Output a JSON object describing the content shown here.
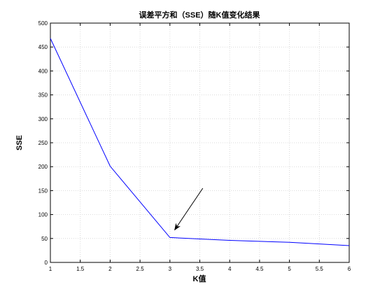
{
  "chart_data": {
    "type": "line",
    "title": "误差平方和（SSE）随K值变化结果",
    "xlabel": "K值",
    "ylabel": "SSE",
    "x": [
      1,
      2,
      3,
      4,
      5,
      6
    ],
    "series": [
      {
        "values": [
          468,
          201,
          52,
          46,
          42,
          35
        ],
        "color": "#0000ff"
      }
    ],
    "xlim": [
      1,
      6
    ],
    "ylim": [
      0,
      500
    ],
    "xticks": [
      "1",
      "1.5",
      "2",
      "2.5",
      "3",
      "3.5",
      "4",
      "4.5",
      "5",
      "5.5",
      "6"
    ],
    "yticks": [
      "0",
      "50",
      "100",
      "150",
      "200",
      "250",
      "300",
      "350",
      "400",
      "450",
      "500"
    ],
    "grid": true,
    "annotation": {
      "type": "arrow",
      "from": [
        3.55,
        155
      ],
      "to": [
        3.08,
        68
      ],
      "color": "#000000"
    }
  }
}
